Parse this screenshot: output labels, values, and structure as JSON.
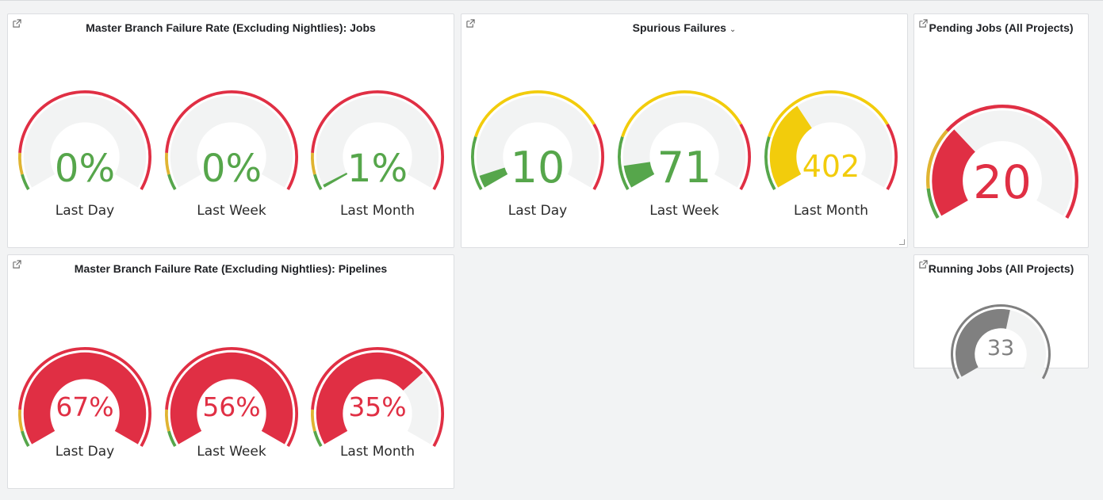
{
  "panels": {
    "jobs": {
      "title": "Master Branch Failure Rate (Excluding Nightlies): Jobs",
      "gauges": [
        {
          "value": "0%",
          "label": "Last Day",
          "fraction": 0.0,
          "color": "#56a64b"
        },
        {
          "value": "0%",
          "label": "Last Week",
          "fraction": 0.0,
          "color": "#56a64b"
        },
        {
          "value": "1%",
          "label": "Last Month",
          "fraction": 0.01,
          "color": "#56a64b"
        }
      ],
      "thresholds": [
        {
          "to": 0.06,
          "color": "#56a64b"
        },
        {
          "to": 0.14,
          "color": "#e0b432"
        },
        {
          "to": 1.0,
          "color": "#e02f44"
        }
      ]
    },
    "spurious": {
      "title": "Spurious Failures",
      "gauges": [
        {
          "value": "10",
          "label": "Last Day",
          "fraction": 0.05,
          "color": "#56a64b"
        },
        {
          "value": "71",
          "label": "Last Week",
          "fraction": 0.09,
          "color": "#56a64b"
        },
        {
          "value": "402",
          "label": "Last Month",
          "fraction": 0.36,
          "color": "#f2cc0c"
        }
      ],
      "thresholds": [
        {
          "to": 0.2,
          "color": "#56a64b"
        },
        {
          "to": 0.75,
          "color": "#f2cc0c"
        },
        {
          "to": 1.0,
          "color": "#e02f44"
        }
      ]
    },
    "pending": {
      "title": "Pending Jobs (All Projects)",
      "gauge": {
        "value": "20",
        "fraction": 0.32,
        "color": "#e02f44"
      },
      "thresholds": [
        {
          "to": 0.1,
          "color": "#56a64b"
        },
        {
          "to": 0.3,
          "color": "#e0b432"
        },
        {
          "to": 1.0,
          "color": "#e02f44"
        }
      ]
    },
    "pipelines": {
      "title": "Master Branch Failure Rate (Excluding Nightlies): Pipelines",
      "gauges": [
        {
          "value": "67%",
          "label": "Last Day",
          "fraction": 1.0,
          "color": "#e02f44"
        },
        {
          "value": "56%",
          "label": "Last Week",
          "fraction": 1.0,
          "color": "#e02f44"
        },
        {
          "value": "35%",
          "label": "Last Month",
          "fraction": 0.7,
          "color": "#e02f44"
        }
      ],
      "thresholds": [
        {
          "to": 0.06,
          "color": "#56a64b"
        },
        {
          "to": 0.14,
          "color": "#e0b432"
        },
        {
          "to": 1.0,
          "color": "#e02f44"
        }
      ]
    },
    "running": {
      "title": "Running Jobs (All Projects)",
      "gauge": {
        "value": "33",
        "fraction": 0.55,
        "color": "#808080"
      },
      "thresholds": [
        {
          "to": 1.0,
          "color": "#808080"
        }
      ]
    }
  }
}
